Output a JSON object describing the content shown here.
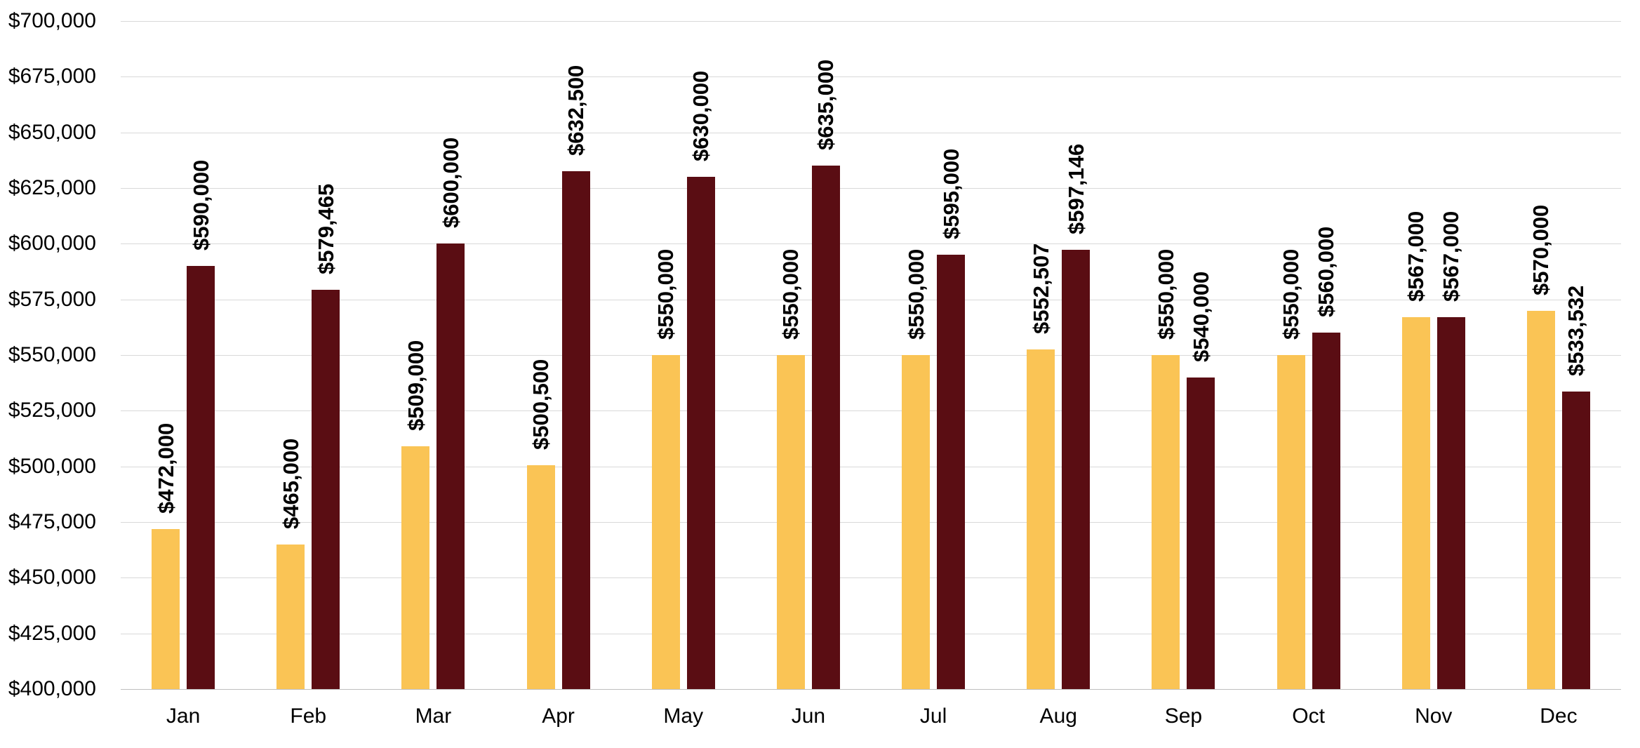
{
  "chart_data": {
    "type": "bar",
    "title": "",
    "xlabel": "",
    "ylabel": "",
    "categories": [
      "Jan",
      "Feb",
      "Mar",
      "Apr",
      "May",
      "Jun",
      "Jul",
      "Aug",
      "Sep",
      "Oct",
      "Nov",
      "Dec"
    ],
    "series": [
      {
        "name": "series-1",
        "color": "#FAC455",
        "values": [
          472000,
          465000,
          509000,
          500500,
          550000,
          550000,
          550000,
          552507,
          550000,
          550000,
          567000,
          570000
        ],
        "labels": [
          "$472,000",
          "$465,000",
          "$509,000",
          "$500,500",
          "$550,000",
          "$550,000",
          "$550,000",
          "$552,507",
          "$550,000",
          "$550,000",
          "$567,000",
          "$570,000"
        ]
      },
      {
        "name": "series-2",
        "color": "#5A0D13",
        "values": [
          590000,
          579465,
          600000,
          632500,
          630000,
          635000,
          595000,
          597146,
          540000,
          560000,
          567000,
          533532
        ],
        "labels": [
          "$590,000",
          "$579,465",
          "$600,000",
          "$632,500",
          "$630,000",
          "$635,000",
          "$595,000",
          "$597,146",
          "$540,000",
          "$560,000",
          "$567,000",
          "$533,532"
        ]
      }
    ],
    "ylim": [
      400000,
      700000
    ],
    "ytick_step": 25000,
    "ytick_labels": [
      "$400,000",
      "$425,000",
      "$450,000",
      "$475,000",
      "$500,000",
      "$525,000",
      "$550,000",
      "$575,000",
      "$600,000",
      "$625,000",
      "$650,000",
      "$675,000",
      "$700,000"
    ],
    "grid": true,
    "legend_position": "none",
    "data_labels_rotation": -90
  }
}
